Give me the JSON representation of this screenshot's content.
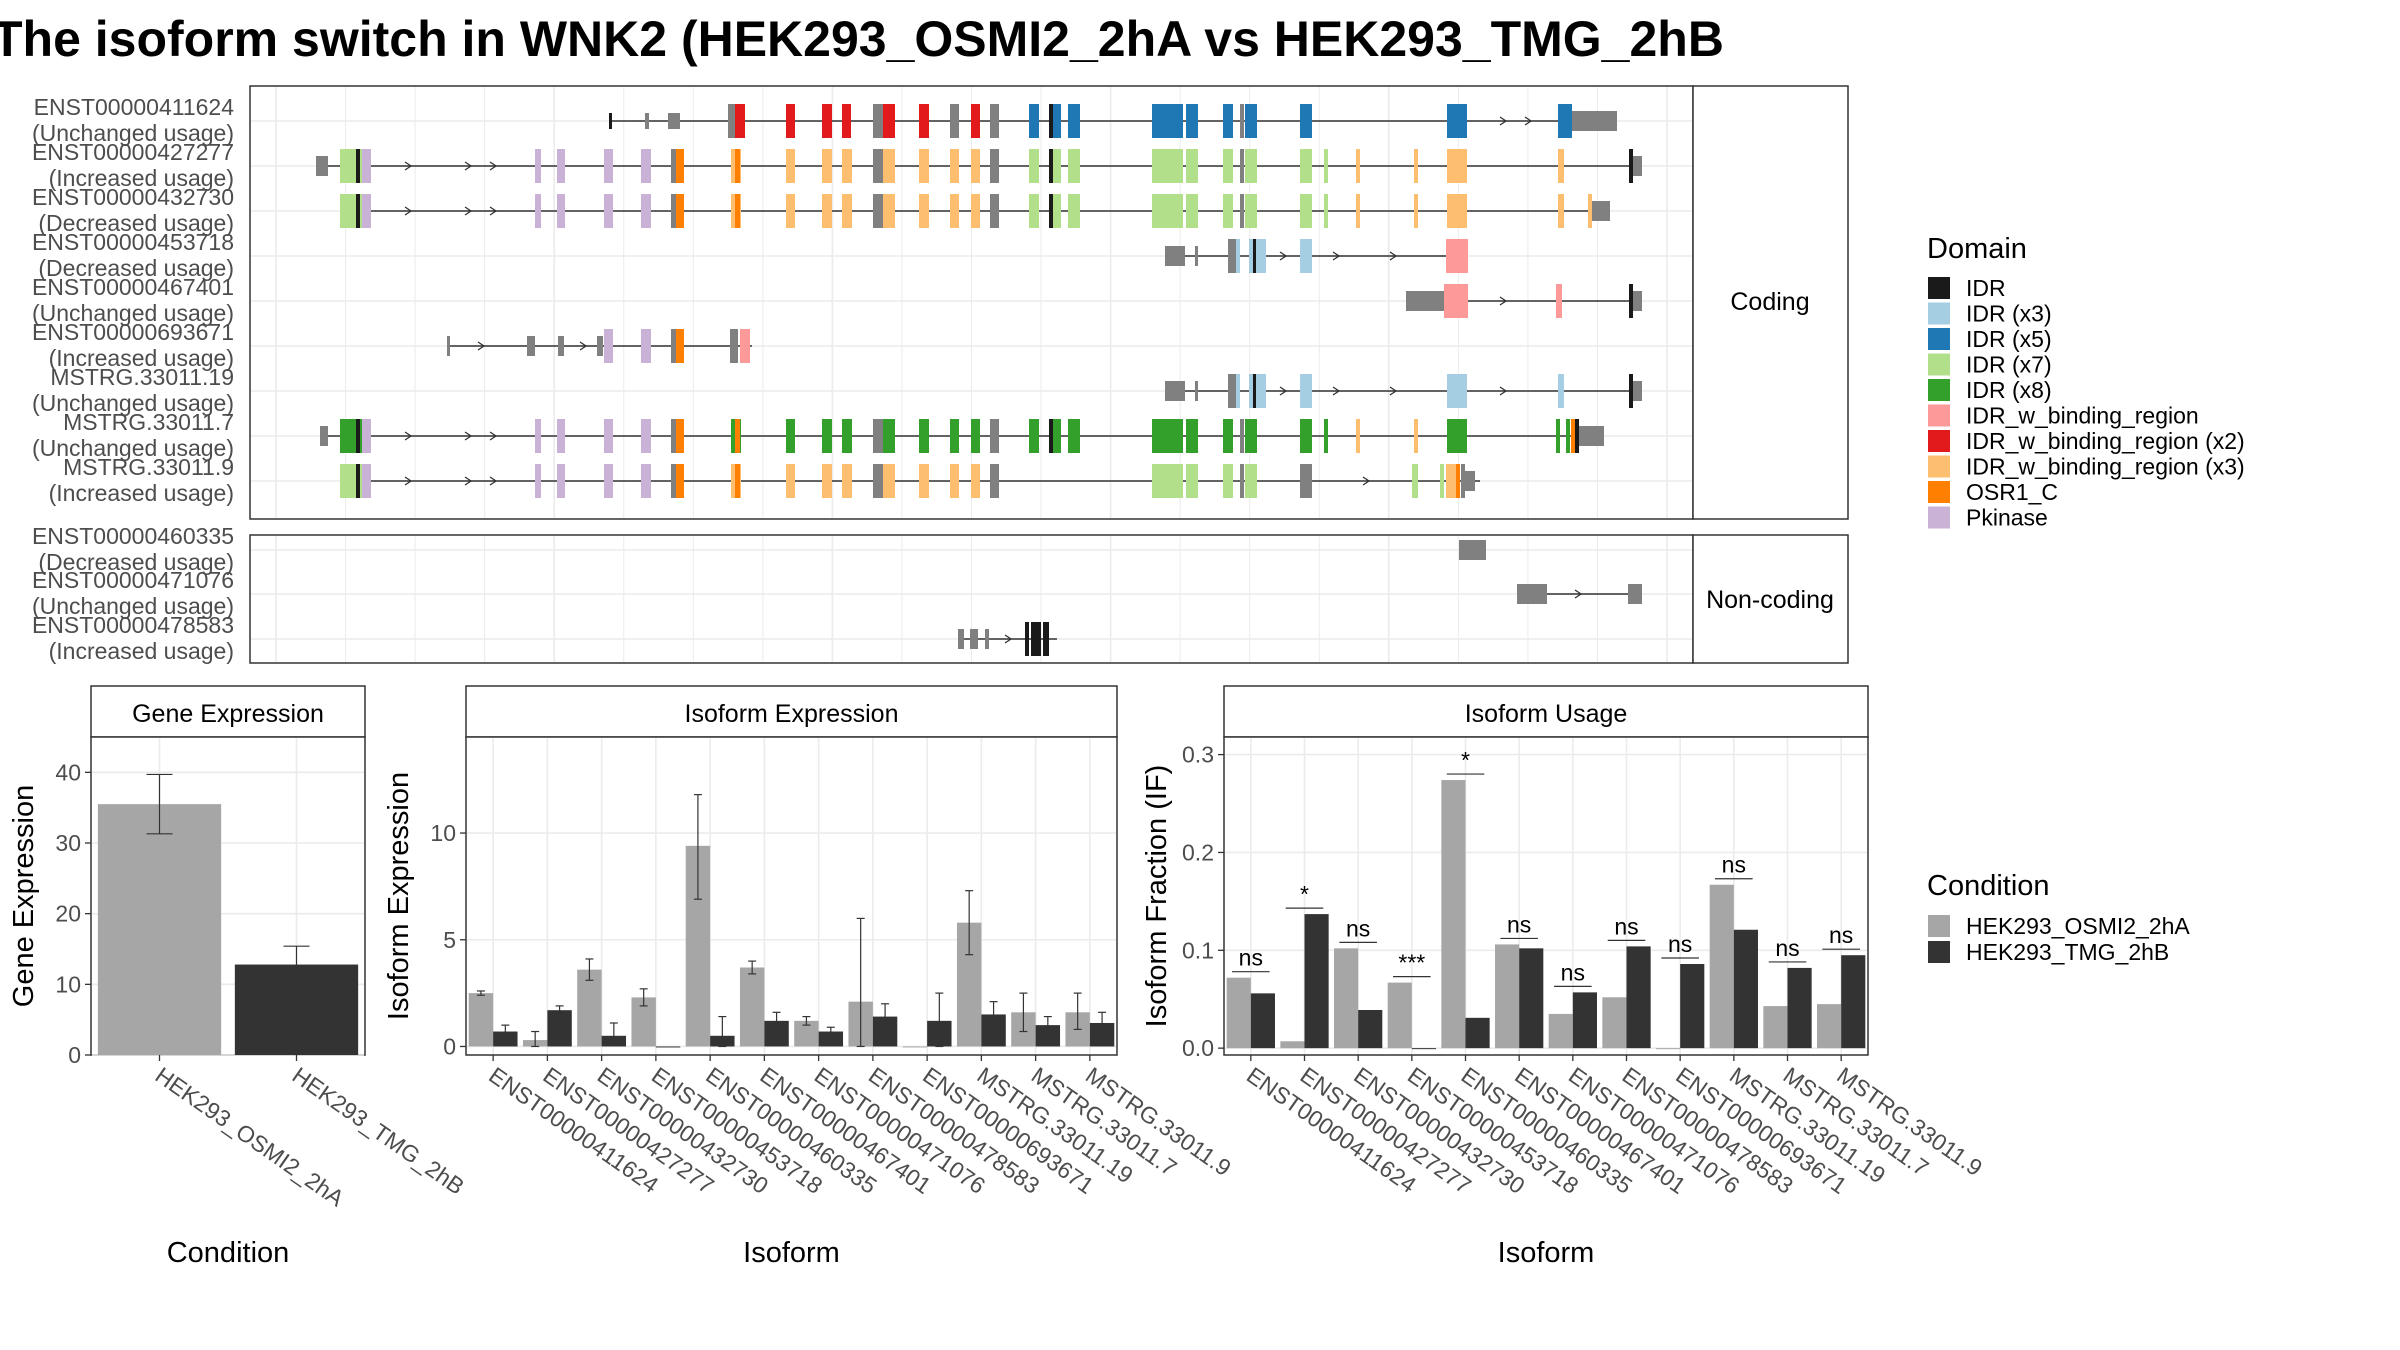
{
  "title": "The isoform switch in WNK2 (HEK293_OSMI2_2hA vs HEK293_TMG_2hB",
  "colors": {
    "IDR": "#1a1a1a",
    "IDR (x3)": "#a6cee3",
    "IDR (x5)": "#1f78b4",
    "IDR (x7)": "#b2df8a",
    "IDR (x8)": "#33a02c",
    "IDR_w_binding_region": "#fb9a99",
    "IDR_w_binding_region (x2)": "#e31a1c",
    "IDR_w_binding_region (x3)": "#fdbf6f",
    "OSR1_C": "#ff7f00",
    "Pkinase": "#cab2d6",
    "exon_plain": "#808080",
    "cond_a": "#a6a6a6",
    "cond_b": "#333333"
  },
  "structure": {
    "facets": [
      "Coding",
      "Non-coding"
    ],
    "coding_tracks": [
      {
        "id": "ENST00000411624",
        "usage": "(Unchanged usage)"
      },
      {
        "id": "ENST00000427277",
        "usage": "(Increased usage)"
      },
      {
        "id": "ENST00000432730",
        "usage": "(Decreased usage)"
      },
      {
        "id": "ENST00000453718",
        "usage": "(Decreased usage)"
      },
      {
        "id": "ENST00000467401",
        "usage": "(Unchanged usage)"
      },
      {
        "id": "ENST00000693671",
        "usage": "(Increased usage)"
      },
      {
        "id": "MSTRG.33011.19",
        "usage": "(Unchanged usage)"
      },
      {
        "id": "MSTRG.33011.7",
        "usage": "(Unchanged usage)"
      },
      {
        "id": "MSTRG.33011.9",
        "usage": "(Increased usage)"
      }
    ],
    "noncoding_tracks": [
      {
        "id": "ENST00000460335",
        "usage": "(Decreased usage)"
      },
      {
        "id": "ENST00000471076",
        "usage": "(Unchanged usage)"
      },
      {
        "id": "ENST00000478583",
        "usage": "(Increased usage)"
      }
    ],
    "legend_title": "Domain",
    "legend_items": [
      "IDR",
      "IDR (x3)",
      "IDR (x5)",
      "IDR (x7)",
      "IDR (x8)",
      "IDR_w_binding_region",
      "IDR_w_binding_region (x2)",
      "IDR_w_binding_region (x3)",
      "OSR1_C",
      "Pkinase"
    ]
  },
  "chart_data": [
    {
      "type": "bar",
      "title": "Gene Expression",
      "xlabel": "Condition",
      "ylabel": "Gene Expression",
      "categories": [
        "HEK293_OSMI2_2hA",
        "HEK293_TMG_2hB"
      ],
      "values": [
        35.5,
        12.8
      ],
      "err_low": [
        31.3,
        10.2
      ],
      "err_high": [
        39.7,
        15.4
      ],
      "ylim": [
        0,
        45
      ],
      "yticks": [
        0,
        10,
        20,
        30,
        40
      ]
    },
    {
      "type": "bar",
      "title": "Isoform Expression",
      "xlabel": "Isoform",
      "ylabel": "Isoform Expression",
      "categories": [
        "ENST00000411624",
        "ENST00000427277",
        "ENST00000432730",
        "ENST00000453718",
        "ENST00000460335",
        "ENST00000467401",
        "ENST00000471076",
        "ENST00000478583",
        "ENST00000693671",
        "MSTRG.33011.19",
        "MSTRG.33011.7",
        "MSTRG.33011.9"
      ],
      "series": [
        {
          "name": "HEK293_OSMI2_2hA",
          "values": [
            2.5,
            0.3,
            3.6,
            2.3,
            9.4,
            3.7,
            1.2,
            2.1,
            0.0,
            5.8,
            1.6,
            1.6
          ],
          "err_low": [
            2.4,
            0.0,
            3.1,
            1.9,
            6.9,
            3.4,
            1.0,
            0.0,
            0.0,
            4.3,
            0.7,
            0.8
          ],
          "err_high": [
            2.6,
            0.7,
            4.1,
            2.7,
            11.8,
            4.0,
            1.4,
            6.0,
            0.0,
            7.3,
            2.5,
            2.5
          ]
        },
        {
          "name": "HEK293_TMG_2hB",
          "values": [
            0.7,
            1.7,
            0.5,
            0.0,
            0.5,
            1.2,
            0.7,
            1.4,
            1.2,
            1.5,
            1.0,
            1.1
          ],
          "err_low": [
            0.4,
            1.5,
            0.1,
            0.0,
            0.0,
            0.8,
            0.5,
            0.8,
            0.0,
            0.9,
            0.6,
            0.6
          ],
          "err_high": [
            1.0,
            1.9,
            1.1,
            0.0,
            1.4,
            1.6,
            0.9,
            2.0,
            2.5,
            2.1,
            1.4,
            1.6
          ]
        }
      ],
      "ylim": [
        -0.4,
        14.5
      ],
      "yticks": [
        0,
        5,
        10
      ]
    },
    {
      "type": "bar",
      "title": "Isoform Usage",
      "xlabel": "Isoform",
      "ylabel": "Isoform Fraction (IF)",
      "categories": [
        "ENST00000411624",
        "ENST00000427277",
        "ENST00000432730",
        "ENST00000453718",
        "ENST00000460335",
        "ENST00000467401",
        "ENST00000471076",
        "ENST00000478583",
        "ENST00000693671",
        "MSTRG.33011.19",
        "MSTRG.33011.7",
        "MSTRG.33011.9"
      ],
      "series": [
        {
          "name": "HEK293_OSMI2_2hA",
          "values": [
            0.072,
            0.007,
            0.102,
            0.067,
            0.274,
            0.106,
            0.035,
            0.052,
            0.0,
            0.167,
            0.043,
            0.045
          ]
        },
        {
          "name": "HEK293_TMG_2hB",
          "values": [
            0.056,
            0.137,
            0.039,
            0.0,
            0.031,
            0.102,
            0.057,
            0.104,
            0.086,
            0.121,
            0.082,
            0.095
          ]
        }
      ],
      "significance": [
        "ns",
        "*",
        "ns",
        "***",
        "*",
        "ns",
        "ns",
        "ns",
        "ns",
        "ns",
        "ns",
        "ns"
      ],
      "ylim": [
        -0.007,
        0.318
      ],
      "yticks": [
        "0.0",
        "0.1",
        "0.2",
        "0.3"
      ]
    }
  ],
  "condition_legend": {
    "title": "Condition",
    "items": [
      "HEK293_OSMI2_2hA",
      "HEK293_TMG_2hB"
    ]
  }
}
